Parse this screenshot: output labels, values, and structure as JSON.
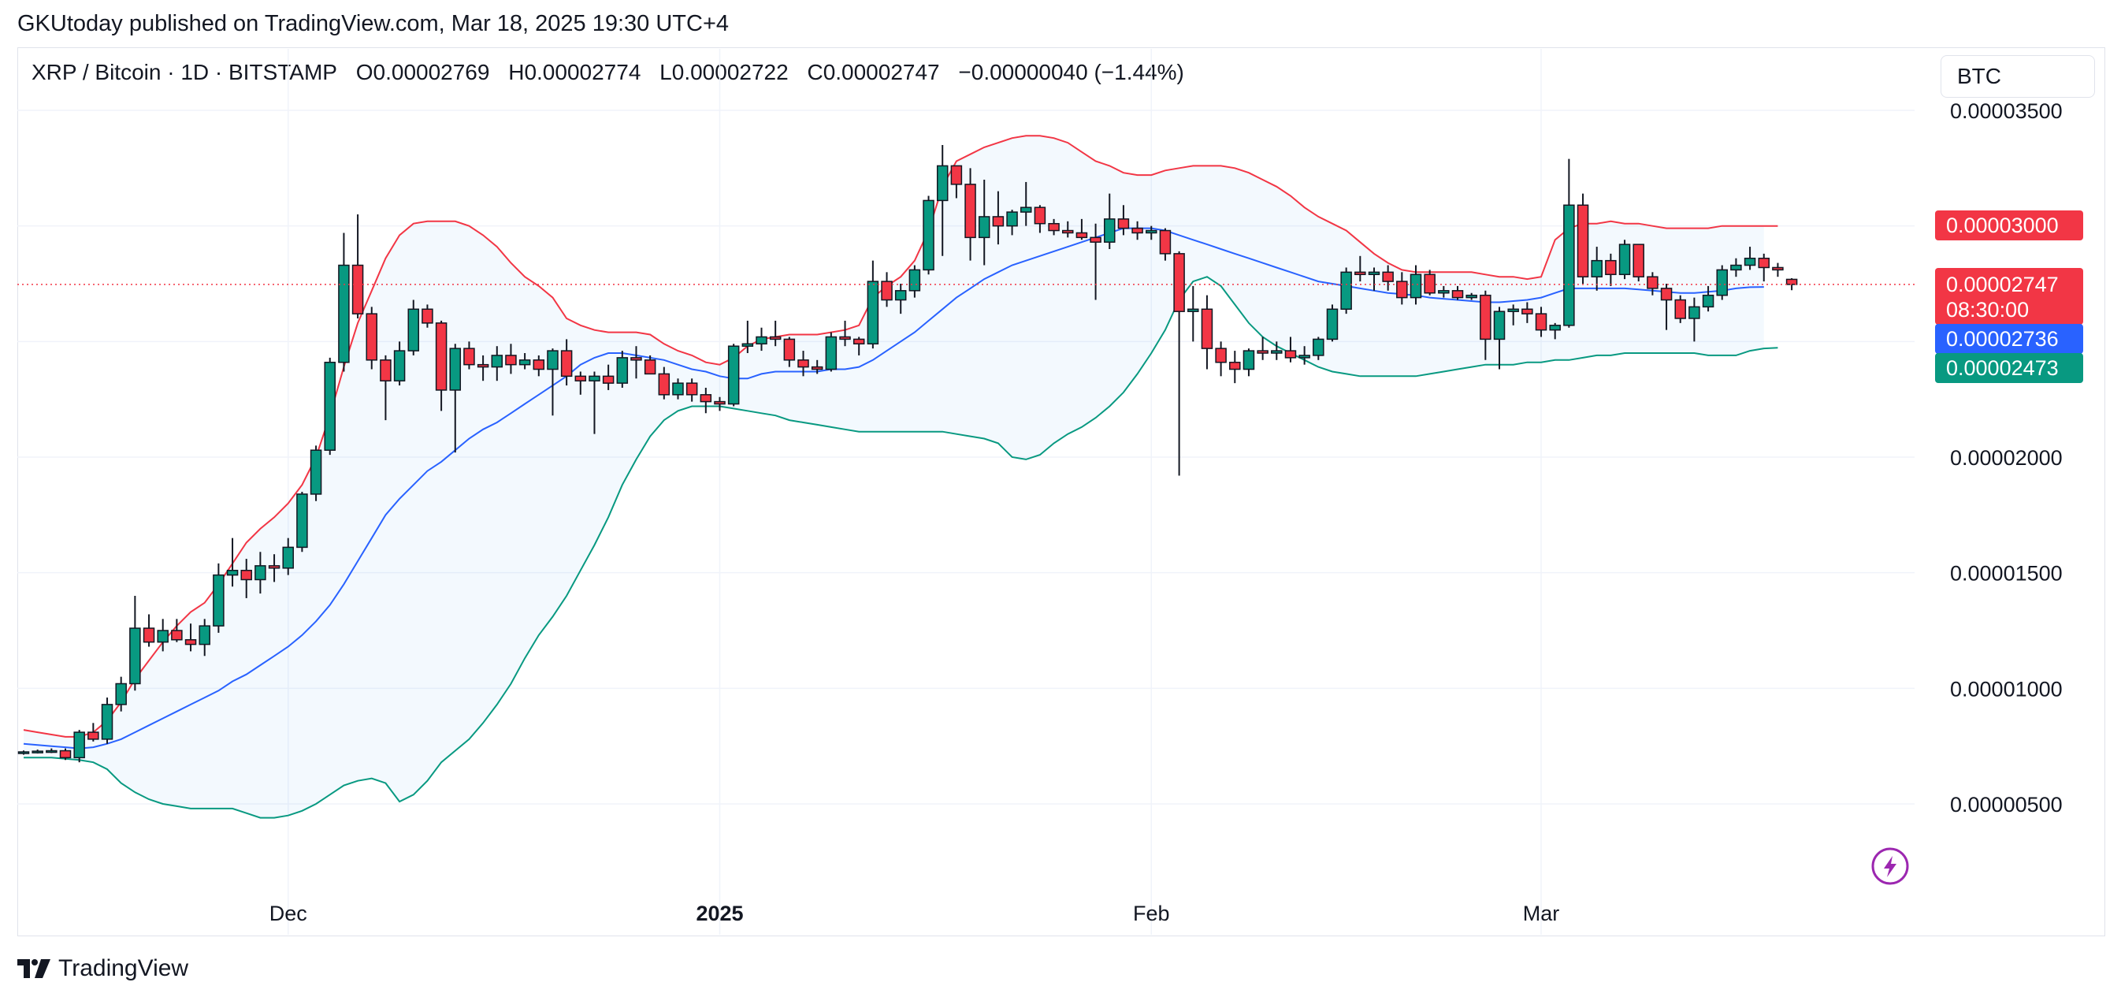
{
  "publisher_line": "GKUtoday published on TradingView.com, Mar 18, 2025 19:30 UTC+4",
  "header": {
    "symbol": "XRP / Bitcoin · 1D · BITSTAMP",
    "open": "O0.00002769",
    "high": "H0.00002774",
    "low": "L0.00002722",
    "close": "C0.00002747",
    "change": "−0.00000040 (−1.44%)"
  },
  "currency_button": "BTC",
  "footer": {
    "brand": "TradingView"
  },
  "colors": {
    "up": "#089981",
    "down": "#f23645",
    "basis": "#2962ff",
    "upper": "#f23645",
    "lower": "#089981",
    "band_fill": "#2196f3",
    "grid": "#f0f3fa"
  },
  "tags": {
    "upper_value": "0.00003000",
    "last_value": "0.00002747",
    "countdown": "08:30:00",
    "basis_value": "0.00002736",
    "lower_value": "0.00002473"
  },
  "chart_data": {
    "type": "candlestick",
    "indicator": "Bollinger Bands",
    "y_axis_labels": [
      "0.00003500",
      "0.00002000",
      "0.00001500",
      "0.00001000",
      "0.00000500"
    ],
    "y_ticks": [
      3.5e-05,
      2e-05,
      1.5e-05,
      1e-05,
      5e-06
    ],
    "x_axis_labels": [
      {
        "label": "Dec",
        "index": 19,
        "bold": false
      },
      {
        "label": "2025",
        "index": 50,
        "bold": true
      },
      {
        "label": "Feb",
        "index": 81,
        "bold": false
      },
      {
        "label": "Mar",
        "index": 109,
        "bold": false
      }
    ],
    "ylim": [
      1.8e-06,
      3.67e-05
    ],
    "candles": [
      [
        7.21e-06,
        7.31e-06,
        7.13e-06,
        7.25e-06
      ],
      [
        7.25e-06,
        7.35e-06,
        7.18e-06,
        7.28e-06
      ],
      [
        7.28e-06,
        7.4e-06,
        7.2e-06,
        7.3e-06
      ],
      [
        7.3e-06,
        7.4e-06,
        6.9e-06,
        7e-06
      ],
      [
        7e-06,
        8.2e-06,
        6.8e-06,
        8.1e-06
      ],
      [
        8.1e-06,
        8.5e-06,
        7.7e-06,
        7.8e-06
      ],
      [
        7.8e-06,
        9.6e-06,
        7.6e-06,
        9.3e-06
      ],
      [
        9.3e-06,
        1.05e-05,
        9e-06,
        1.02e-05
      ],
      [
        1.02e-05,
        1.4e-05,
        9.9e-06,
        1.26e-05
      ],
      [
        1.26e-05,
        1.32e-05,
        1.18e-05,
        1.2e-05
      ],
      [
        1.2e-05,
        1.3e-05,
        1.16e-05,
        1.25e-05
      ],
      [
        1.25e-05,
        1.3e-05,
        1.2e-05,
        1.21e-05
      ],
      [
        1.21e-05,
        1.28e-05,
        1.16e-05,
        1.19e-05
      ],
      [
        1.19e-05,
        1.3e-05,
        1.14e-05,
        1.27e-05
      ],
      [
        1.27e-05,
        1.54e-05,
        1.24e-05,
        1.49e-05
      ],
      [
        1.49e-05,
        1.65e-05,
        1.44e-05,
        1.51e-05
      ],
      [
        1.51e-05,
        1.56e-05,
        1.39e-05,
        1.47e-05
      ],
      [
        1.47e-05,
        1.59e-05,
        1.41e-05,
        1.53e-05
      ],
      [
        1.53e-05,
        1.58e-05,
        1.46e-05,
        1.52e-05
      ],
      [
        1.52e-05,
        1.65e-05,
        1.49e-05,
        1.61e-05
      ],
      [
        1.61e-05,
        1.85e-05,
        1.59e-05,
        1.84e-05
      ],
      [
        1.84e-05,
        2.05e-05,
        1.81e-05,
        2.03e-05
      ],
      [
        2.03e-05,
        2.43e-05,
        2.01e-05,
        2.41e-05
      ],
      [
        2.41e-05,
        2.97e-05,
        2.37e-05,
        2.83e-05
      ],
      [
        2.83e-05,
        3.05e-05,
        2.6e-05,
        2.62e-05
      ],
      [
        2.62e-05,
        2.65e-05,
        2.38e-05,
        2.42e-05
      ],
      [
        2.42e-05,
        2.44e-05,
        2.16e-05,
        2.33e-05
      ],
      [
        2.33e-05,
        2.5e-05,
        2.31e-05,
        2.46e-05
      ],
      [
        2.46e-05,
        2.68e-05,
        2.44e-05,
        2.64e-05
      ],
      [
        2.64e-05,
        2.66e-05,
        2.56e-05,
        2.58e-05
      ],
      [
        2.58e-05,
        2.59e-05,
        2.2e-05,
        2.29e-05
      ],
      [
        2.29e-05,
        2.49e-05,
        2.02e-05,
        2.47e-05
      ],
      [
        2.47e-05,
        2.5e-05,
        2.38e-05,
        2.4e-05
      ],
      [
        2.4e-05,
        2.44e-05,
        2.33e-05,
        2.39e-05
      ],
      [
        2.39e-05,
        2.48e-05,
        2.33e-05,
        2.44e-05
      ],
      [
        2.44e-05,
        2.49e-05,
        2.36e-05,
        2.4e-05
      ],
      [
        2.4e-05,
        2.45e-05,
        2.38e-05,
        2.42e-05
      ],
      [
        2.42e-05,
        2.44e-05,
        2.35e-05,
        2.38e-05
      ],
      [
        2.38e-05,
        2.47e-05,
        2.18e-05,
        2.46e-05
      ],
      [
        2.46e-05,
        2.51e-05,
        2.31e-05,
        2.35e-05
      ],
      [
        2.35e-05,
        2.37e-05,
        2.27e-05,
        2.33e-05
      ],
      [
        2.33e-05,
        2.37e-05,
        2.1e-05,
        2.35e-05
      ],
      [
        2.35e-05,
        2.4e-05,
        2.29e-05,
        2.32e-05
      ],
      [
        2.32e-05,
        2.46e-05,
        2.3e-05,
        2.43e-05
      ],
      [
        2.43e-05,
        2.48e-05,
        2.34e-05,
        2.42e-05
      ],
      [
        2.42e-05,
        2.44e-05,
        2.36e-05,
        2.36e-05
      ],
      [
        2.36e-05,
        2.39e-05,
        2.25e-05,
        2.27e-05
      ],
      [
        2.27e-05,
        2.34e-05,
        2.25e-05,
        2.32e-05
      ],
      [
        2.32e-05,
        2.34e-05,
        2.24e-05,
        2.27e-05
      ],
      [
        2.27e-05,
        2.3e-05,
        2.19e-05,
        2.24e-05
      ],
      [
        2.24e-05,
        2.26e-05,
        2.2e-05,
        2.23e-05
      ],
      [
        2.23e-05,
        2.49e-05,
        2.22e-05,
        2.48e-05
      ],
      [
        2.48e-05,
        2.59e-05,
        2.45e-05,
        2.49e-05
      ],
      [
        2.49e-05,
        2.56e-05,
        2.46e-05,
        2.52e-05
      ],
      [
        2.52e-05,
        2.59e-05,
        2.48e-05,
        2.51e-05
      ],
      [
        2.51e-05,
        2.52e-05,
        2.39e-05,
        2.42e-05
      ],
      [
        2.42e-05,
        2.46e-05,
        2.35e-05,
        2.39e-05
      ],
      [
        2.39e-05,
        2.42e-05,
        2.36e-05,
        2.38e-05
      ],
      [
        2.38e-05,
        2.54e-05,
        2.37e-05,
        2.52e-05
      ],
      [
        2.52e-05,
        2.59e-05,
        2.48e-05,
        2.51e-05
      ],
      [
        2.51e-05,
        2.52e-05,
        2.44e-05,
        2.49e-05
      ],
      [
        2.49e-05,
        2.85e-05,
        2.47e-05,
        2.76e-05
      ],
      [
        2.76e-05,
        2.8e-05,
        2.65e-05,
        2.68e-05
      ],
      [
        2.68e-05,
        2.75e-05,
        2.62e-05,
        2.72e-05
      ],
      [
        2.72e-05,
        2.83e-05,
        2.69e-05,
        2.81e-05
      ],
      [
        2.81e-05,
        3.13e-05,
        2.79e-05,
        3.11e-05
      ],
      [
        3.11e-05,
        3.35e-05,
        2.87e-05,
        3.26e-05
      ],
      [
        3.26e-05,
        3.26e-05,
        3.12e-05,
        3.18e-05
      ],
      [
        3.18e-05,
        3.25e-05,
        2.85e-05,
        2.95e-05
      ],
      [
        2.95e-05,
        3.2e-05,
        2.83e-05,
        3.04e-05
      ],
      [
        3.04e-05,
        3.15e-05,
        2.92e-05,
        3e-05
      ],
      [
        3e-05,
        3.07e-05,
        2.96e-05,
        3.06e-05
      ],
      [
        3.06e-05,
        3.19e-05,
        3e-05,
        3.08e-05
      ],
      [
        3.08e-05,
        3.09e-05,
        2.97e-05,
        3.01e-05
      ],
      [
        3.01e-05,
        3.03e-05,
        2.96e-05,
        2.98e-05
      ],
      [
        2.98e-05,
        3.02e-05,
        2.95e-05,
        2.97e-05
      ],
      [
        2.97e-05,
        3.03e-05,
        2.94e-05,
        2.95e-05
      ],
      [
        2.95e-05,
        3.01e-05,
        2.68e-05,
        2.93e-05
      ],
      [
        2.93e-05,
        3.14e-05,
        2.9e-05,
        3.03e-05
      ],
      [
        3.03e-05,
        3.09e-05,
        2.96e-05,
        2.99e-05
      ],
      [
        2.99e-05,
        3.02e-05,
        2.94e-05,
        2.97e-05
      ],
      [
        2.97e-05,
        3e-05,
        2.94e-05,
        2.98e-05
      ],
      [
        2.98e-05,
        2.99e-05,
        2.85e-05,
        2.88e-05
      ],
      [
        2.88e-05,
        2.89e-05,
        1.92e-05,
        2.63e-05
      ],
      [
        2.63e-05,
        2.74e-05,
        2.5e-05,
        2.64e-05
      ],
      [
        2.64e-05,
        2.7e-05,
        2.38e-05,
        2.47e-05
      ],
      [
        2.47e-05,
        2.5e-05,
        2.35e-05,
        2.41e-05
      ],
      [
        2.41e-05,
        2.46e-05,
        2.32e-05,
        2.38e-05
      ],
      [
        2.38e-05,
        2.47e-05,
        2.35e-05,
        2.46e-05
      ],
      [
        2.46e-05,
        2.52e-05,
        2.42e-05,
        2.45e-05
      ],
      [
        2.45e-05,
        2.5e-05,
        2.42e-05,
        2.46e-05
      ],
      [
        2.46e-05,
        2.52e-05,
        2.41e-05,
        2.43e-05
      ],
      [
        2.43e-05,
        2.48e-05,
        2.4e-05,
        2.44e-05
      ],
      [
        2.44e-05,
        2.52e-05,
        2.42e-05,
        2.51e-05
      ],
      [
        2.51e-05,
        2.66e-05,
        2.5e-05,
        2.64e-05
      ],
      [
        2.64e-05,
        2.82e-05,
        2.62e-05,
        2.8e-05
      ],
      [
        2.8e-05,
        2.87e-05,
        2.76e-05,
        2.79e-05
      ],
      [
        2.79e-05,
        2.82e-05,
        2.72e-05,
        2.8e-05
      ],
      [
        2.8e-05,
        2.83e-05,
        2.72e-05,
        2.76e-05
      ],
      [
        2.76e-05,
        2.8e-05,
        2.66e-05,
        2.69e-05
      ],
      [
        2.69e-05,
        2.83e-05,
        2.66e-05,
        2.79e-05
      ],
      [
        2.79e-05,
        2.81e-05,
        2.7e-05,
        2.71e-05
      ],
      [
        2.71e-05,
        2.74e-05,
        2.69e-05,
        2.72e-05
      ],
      [
        2.72e-05,
        2.74e-05,
        2.68e-05,
        2.69e-05
      ],
      [
        2.69e-05,
        2.71e-05,
        2.68e-05,
        2.7e-05
      ],
      [
        2.7e-05,
        2.72e-05,
        2.42e-05,
        2.51e-05
      ],
      [
        2.51e-05,
        2.65e-05,
        2.38e-05,
        2.63e-05
      ],
      [
        2.63e-05,
        2.66e-05,
        2.57e-05,
        2.64e-05
      ],
      [
        2.64e-05,
        2.67e-05,
        2.58e-05,
        2.62e-05
      ],
      [
        2.62e-05,
        2.65e-05,
        2.52e-05,
        2.55e-05
      ],
      [
        2.55e-05,
        2.58e-05,
        2.51e-05,
        2.57e-05
      ],
      [
        2.57e-05,
        3.29e-05,
        2.56e-05,
        3.09e-05
      ],
      [
        3.09e-05,
        3.14e-05,
        2.75e-05,
        2.78e-05
      ],
      [
        2.78e-05,
        2.91e-05,
        2.72e-05,
        2.85e-05
      ],
      [
        2.85e-05,
        2.88e-05,
        2.74e-05,
        2.79e-05
      ],
      [
        2.79e-05,
        2.94e-05,
        2.77e-05,
        2.92e-05
      ],
      [
        2.92e-05,
        2.92e-05,
        2.76e-05,
        2.78e-05
      ],
      [
        2.78e-05,
        2.8e-05,
        2.7e-05,
        2.73e-05
      ],
      [
        2.73e-05,
        2.75e-05,
        2.55e-05,
        2.68e-05
      ],
      [
        2.68e-05,
        2.7e-05,
        2.58e-05,
        2.6e-05
      ],
      [
        2.6e-05,
        2.69e-05,
        2.5e-05,
        2.65e-05
      ],
      [
        2.65e-05,
        2.74e-05,
        2.63e-05,
        2.7e-05
      ],
      [
        2.7e-05,
        2.83e-05,
        2.68e-05,
        2.81e-05
      ],
      [
        2.81e-05,
        2.86e-05,
        2.78e-05,
        2.83e-05
      ],
      [
        2.83e-05,
        2.91e-05,
        2.81e-05,
        2.86e-05
      ],
      [
        2.86e-05,
        2.88e-05,
        2.76e-05,
        2.82e-05
      ],
      [
        2.82e-05,
        2.84e-05,
        2.78e-05,
        2.81e-05
      ],
      [
        2.769e-05,
        2.774e-05,
        2.722e-05,
        2.747e-05
      ]
    ],
    "upper_band": [
      8.2e-06,
      8.1e-06,
      8e-06,
      7.9e-06,
      7.9e-06,
      8.1e-06,
      8.6e-06,
      9.4e-06,
      1.04e-05,
      1.12e-05,
      1.2e-05,
      1.27e-05,
      1.33e-05,
      1.37e-05,
      1.45e-05,
      1.54e-05,
      1.63e-05,
      1.69e-05,
      1.74e-05,
      1.8e-05,
      1.88e-05,
      2e-05,
      2.18e-05,
      2.39e-05,
      2.58e-05,
      2.72e-05,
      2.86e-05,
      2.96e-05,
      3.01e-05,
      3.02e-05,
      3.02e-05,
      3.02e-05,
      3e-05,
      2.96e-05,
      2.91e-05,
      2.84e-05,
      2.78e-05,
      2.74e-05,
      2.69e-05,
      2.6e-05,
      2.57e-05,
      2.55e-05,
      2.54e-05,
      2.54e-05,
      2.54e-05,
      2.53e-05,
      2.49e-05,
      2.46e-05,
      2.44e-05,
      2.41e-05,
      2.4e-05,
      2.43e-05,
      2.48e-05,
      2.51e-05,
      2.52e-05,
      2.53e-05,
      2.53e-05,
      2.53e-05,
      2.54e-05,
      2.55e-05,
      2.57e-05,
      2.69e-05,
      2.74e-05,
      2.78e-05,
      2.85e-05,
      2.98e-05,
      3.17e-05,
      3.28e-05,
      3.31e-05,
      3.34e-05,
      3.36e-05,
      3.38e-05,
      3.39e-05,
      3.39e-05,
      3.38e-05,
      3.36e-05,
      3.32e-05,
      3.28e-05,
      3.26e-05,
      3.23e-05,
      3.22e-05,
      3.22e-05,
      3.24e-05,
      3.25e-05,
      3.26e-05,
      3.26e-05,
      3.26e-05,
      3.25e-05,
      3.23e-05,
      3.2e-05,
      3.17e-05,
      3.13e-05,
      3.08e-05,
      3.04e-05,
      3.01e-05,
      2.98e-05,
      2.93e-05,
      2.88e-05,
      2.84e-05,
      2.81e-05,
      2.8e-05,
      2.8e-05,
      2.8e-05,
      2.8e-05,
      2.8e-05,
      2.79e-05,
      2.78e-05,
      2.78e-05,
      2.77e-05,
      2.78e-05,
      2.94e-05,
      2.99e-05,
      3.01e-05,
      3.01e-05,
      3.02e-05,
      3.01e-05,
      3.01e-05,
      3e-05,
      2.99e-05,
      2.99e-05,
      2.99e-05,
      2.99e-05,
      3e-05,
      3e-05,
      3e-05,
      3e-05,
      3e-05
    ],
    "basis": [
      7.6e-06,
      7.55e-06,
      7.5e-06,
      7.45e-06,
      7.4e-06,
      7.45e-06,
      7.6e-06,
      7.8e-06,
      8.1e-06,
      8.4e-06,
      8.7e-06,
      9e-06,
      9.3e-06,
      9.6e-06,
      9.9e-06,
      1.03e-05,
      1.06e-05,
      1.1e-05,
      1.14e-05,
      1.18e-05,
      1.23e-05,
      1.29e-05,
      1.36e-05,
      1.45e-05,
      1.55e-05,
      1.65e-05,
      1.75e-05,
      1.82e-05,
      1.88e-05,
      1.94e-05,
      1.98e-05,
      2.03e-05,
      2.08e-05,
      2.12e-05,
      2.15e-05,
      2.19e-05,
      2.23e-05,
      2.27e-05,
      2.31e-05,
      2.35e-05,
      2.4e-05,
      2.43e-05,
      2.45e-05,
      2.45e-05,
      2.44e-05,
      2.43e-05,
      2.42e-05,
      2.4e-05,
      2.38e-05,
      2.37e-05,
      2.35e-05,
      2.34e-05,
      2.34e-05,
      2.36e-05,
      2.37e-05,
      2.37e-05,
      2.37e-05,
      2.37e-05,
      2.38e-05,
      2.38e-05,
      2.39e-05,
      2.42e-05,
      2.46e-05,
      2.5e-05,
      2.54e-05,
      2.59e-05,
      2.64e-05,
      2.69e-05,
      2.73e-05,
      2.77e-05,
      2.8e-05,
      2.83e-05,
      2.85e-05,
      2.87e-05,
      2.89e-05,
      2.91e-05,
      2.93e-05,
      2.95e-05,
      2.97e-05,
      2.99e-05,
      2.99e-05,
      2.99e-05,
      2.98e-05,
      2.96e-05,
      2.94e-05,
      2.92e-05,
      2.9e-05,
      2.88e-05,
      2.86e-05,
      2.84e-05,
      2.82e-05,
      2.8e-05,
      2.78e-05,
      2.76e-05,
      2.75e-05,
      2.74e-05,
      2.73e-05,
      2.72e-05,
      2.71e-05,
      2.705e-05,
      2.7e-05,
      2.69e-05,
      2.685e-05,
      2.68e-05,
      2.675e-05,
      2.67e-05,
      2.67e-05,
      2.675e-05,
      2.68e-05,
      2.69e-05,
      2.71e-05,
      2.73e-05,
      2.73e-05,
      2.73e-05,
      2.73e-05,
      2.73e-05,
      2.725e-05,
      2.72e-05,
      2.715e-05,
      2.71e-05,
      2.71e-05,
      2.715e-05,
      2.72e-05,
      2.73e-05,
      2.735e-05,
      2.736e-05
    ],
    "lower_band": [
      7e-06,
      7e-06,
      7e-06,
      6.95e-06,
      6.9e-06,
      6.8e-06,
      6.5e-06,
      5.9e-06,
      5.5e-06,
      5.2e-06,
      5e-06,
      4.9e-06,
      4.8e-06,
      4.8e-06,
      4.8e-06,
      4.8e-06,
      4.6e-06,
      4.4e-06,
      4.4e-06,
      4.5e-06,
      4.7e-06,
      5e-06,
      5.4e-06,
      5.8e-06,
      6e-06,
      6.1e-06,
      5.9e-06,
      5.1e-06,
      5.4e-06,
      6e-06,
      6.8e-06,
      7.3e-06,
      7.8e-06,
      8.5e-06,
      9.3e-06,
      1.02e-05,
      1.13e-05,
      1.23e-05,
      1.31e-05,
      1.4e-05,
      1.51e-05,
      1.62e-05,
      1.74e-05,
      1.88e-05,
      1.99e-05,
      2.09e-05,
      2.16e-05,
      2.2e-05,
      2.22e-05,
      2.22e-05,
      2.22e-05,
      2.21e-05,
      2.2e-05,
      2.19e-05,
      2.18e-05,
      2.16e-05,
      2.15e-05,
      2.14e-05,
      2.13e-05,
      2.12e-05,
      2.11e-05,
      2.11e-05,
      2.11e-05,
      2.11e-05,
      2.11e-05,
      2.11e-05,
      2.11e-05,
      2.1e-05,
      2.09e-05,
      2.08e-05,
      2.06e-05,
      2e-05,
      1.99e-05,
      2.01e-05,
      2.06e-05,
      2.1e-05,
      2.13e-05,
      2.17e-05,
      2.22e-05,
      2.28e-05,
      2.36e-05,
      2.45e-05,
      2.55e-05,
      2.68e-05,
      2.76e-05,
      2.78e-05,
      2.74e-05,
      2.66e-05,
      2.58e-05,
      2.52e-05,
      2.48e-05,
      2.45e-05,
      2.42e-05,
      2.39e-05,
      2.37e-05,
      2.36e-05,
      2.35e-05,
      2.35e-05,
      2.35e-05,
      2.35e-05,
      2.35e-05,
      2.36e-05,
      2.37e-05,
      2.38e-05,
      2.39e-05,
      2.4e-05,
      2.4e-05,
      2.4e-05,
      2.41e-05,
      2.41e-05,
      2.42e-05,
      2.42e-05,
      2.43e-05,
      2.44e-05,
      2.44e-05,
      2.45e-05,
      2.45e-05,
      2.45e-05,
      2.45e-05,
      2.45e-05,
      2.45e-05,
      2.44e-05,
      2.44e-05,
      2.44e-05,
      2.46e-05,
      2.47e-05,
      2.473e-05
    ]
  }
}
